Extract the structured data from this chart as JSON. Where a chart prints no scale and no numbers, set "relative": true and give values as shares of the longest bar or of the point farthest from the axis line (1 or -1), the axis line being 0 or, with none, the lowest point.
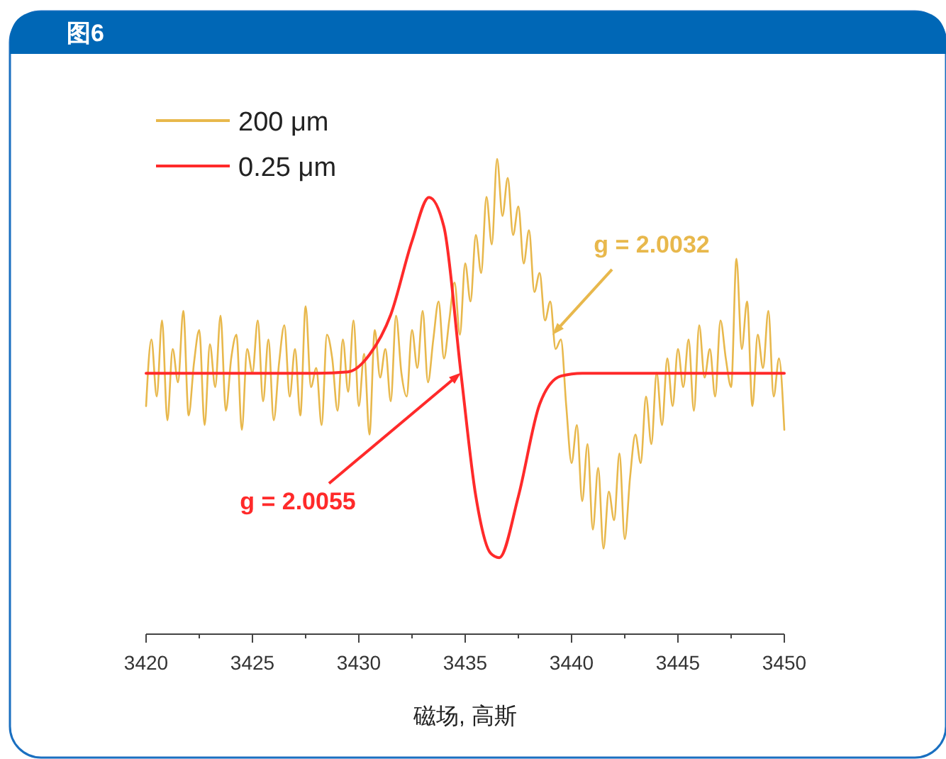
{
  "chart_data": {
    "type": "line",
    "title": "图6",
    "xlabel": "磁场, 高斯",
    "relative": true,
    "legend": "top left",
    "xlim": [
      3420,
      3450
    ],
    "xticks": [
      3420,
      {
        "value": 3422.5,
        "label": null
      },
      3425,
      {
        "value": 3427.5,
        "label": null
      },
      3430,
      {
        "value": 3432.5,
        "label": null
      },
      3435,
      {
        "value": 3437.5,
        "label": null
      },
      3440,
      {
        "value": 3442.5,
        "label": null
      },
      3445,
      {
        "value": 3447.5,
        "label": null
      },
      3450
    ],
    "annotations": [
      {
        "text": "g = 2.0032",
        "x": 3439.1,
        "y": 0.63
      },
      {
        "text": "g = 2.0055",
        "x": 3434.8,
        "y": 0.55
      }
    ],
    "series": [
      {
        "name": "200 μm",
        "color": "#e8b84c",
        "x": [
          3420,
          3420.25,
          3420.5,
          3420.75,
          3421,
          3421.25,
          3421.5,
          3421.75,
          3422,
          3422.25,
          3422.5,
          3422.75,
          3423,
          3423.25,
          3423.5,
          3423.75,
          3424,
          3424.25,
          3424.5,
          3424.75,
          3425,
          3425.25,
          3425.5,
          3425.75,
          3426,
          3426.25,
          3426.5,
          3426.75,
          3427,
          3427.25,
          3427.5,
          3427.75,
          3428,
          3428.25,
          3428.5,
          3428.75,
          3429,
          3429.25,
          3429.5,
          3429.75,
          3430,
          3430.25,
          3430.5,
          3430.75,
          3431,
          3431.25,
          3431.5,
          3431.75,
          3432,
          3432.25,
          3432.5,
          3432.75,
          3433,
          3433.25,
          3433.5,
          3433.75,
          3434,
          3434.25,
          3434.5,
          3434.75,
          3435,
          3435.25,
          3435.5,
          3435.75,
          3436,
          3436.25,
          3436.5,
          3436.75,
          3437,
          3437.25,
          3437.5,
          3437.75,
          3438,
          3438.25,
          3438.5,
          3438.75,
          3439,
          3439.25,
          3439.5,
          3439.75,
          3440,
          3440.25,
          3440.5,
          3440.75,
          3441,
          3441.25,
          3441.5,
          3441.75,
          3442,
          3442.25,
          3442.5,
          3442.75,
          3443,
          3443.25,
          3443.5,
          3443.75,
          3444,
          3444.25,
          3444.5,
          3444.75,
          3445,
          3445.25,
          3445.5,
          3445.75,
          3446,
          3446.25,
          3446.5,
          3446.75,
          3447,
          3447.25,
          3447.5,
          3447.75,
          3448,
          3448.25,
          3448.5,
          3448.75,
          3449,
          3449.25,
          3449.5,
          3449.75,
          3450
        ],
        "values": [
          0.48,
          0.62,
          0.5,
          0.66,
          0.45,
          0.6,
          0.53,
          0.68,
          0.46,
          0.57,
          0.64,
          0.44,
          0.61,
          0.52,
          0.67,
          0.47,
          0.58,
          0.63,
          0.43,
          0.6,
          0.55,
          0.66,
          0.49,
          0.62,
          0.45,
          0.57,
          0.65,
          0.5,
          0.6,
          0.46,
          0.69,
          0.52,
          0.56,
          0.44,
          0.63,
          0.58,
          0.47,
          0.62,
          0.51,
          0.66,
          0.48,
          0.59,
          0.42,
          0.64,
          0.54,
          0.6,
          0.49,
          0.67,
          0.55,
          0.5,
          0.64,
          0.56,
          0.68,
          0.53,
          0.62,
          0.7,
          0.58,
          0.66,
          0.74,
          0.63,
          0.78,
          0.7,
          0.84,
          0.76,
          0.92,
          0.82,
          1.0,
          0.88,
          0.96,
          0.84,
          0.9,
          0.78,
          0.85,
          0.72,
          0.76,
          0.66,
          0.7,
          0.6,
          0.62,
          0.48,
          0.36,
          0.44,
          0.28,
          0.4,
          0.22,
          0.35,
          0.18,
          0.3,
          0.24,
          0.38,
          0.2,
          0.33,
          0.42,
          0.36,
          0.5,
          0.4,
          0.55,
          0.44,
          0.58,
          0.48,
          0.6,
          0.52,
          0.62,
          0.47,
          0.65,
          0.54,
          0.6,
          0.5,
          0.66,
          0.58,
          0.52,
          0.79,
          0.6,
          0.7,
          0.48,
          0.63,
          0.56,
          0.68,
          0.5,
          0.58,
          0.43
        ]
      },
      {
        "name": "0.25 μm",
        "color": "#ff2a2a",
        "x": [
          3420,
          3428,
          3429.5,
          3430.5,
          3431.5,
          3432.5,
          3433.3,
          3434,
          3434.8,
          3435.5,
          3436.2,
          3436.6,
          3437.5,
          3438.5,
          3439.5,
          3440.5,
          3450
        ],
        "values": [
          0.549,
          0.549,
          0.552,
          0.588,
          0.672,
          0.827,
          0.919,
          0.857,
          0.549,
          0.29,
          0.17,
          0.161,
          0.29,
          0.484,
          0.543,
          0.549,
          0.549
        ]
      }
    ]
  }
}
